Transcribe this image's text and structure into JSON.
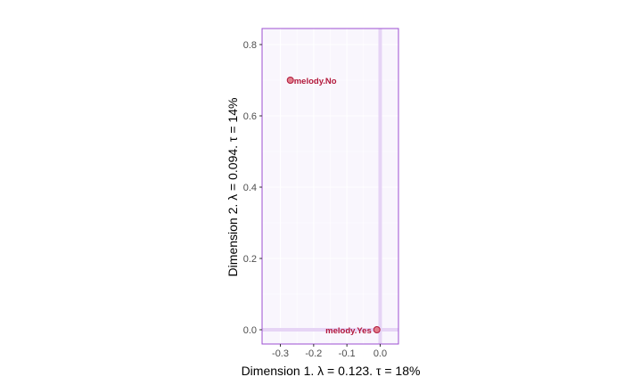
{
  "chart_data": {
    "type": "scatter",
    "xlabel": "Dimension 1.   λ = 0.123.  τ = 18%",
    "ylabel": "Dimension 2.   λ = 0.094.  τ = 14%",
    "xlim": [
      -0.355,
      0.055
    ],
    "ylim": [
      -0.04,
      0.845
    ],
    "x_ticks": [
      -0.3,
      -0.2,
      -0.1,
      0.0
    ],
    "x_tick_labels": [
      "-0.3",
      "-0.2",
      "-0.1",
      "0.0"
    ],
    "y_ticks": [
      0.0,
      0.2,
      0.4,
      0.6,
      0.8
    ],
    "y_tick_labels": [
      "0.0",
      "0.2",
      "0.4",
      "0.6",
      "0.8"
    ],
    "reference_lines": {
      "x": 0,
      "y": 0
    },
    "grid": true,
    "points": [
      {
        "label": "melody.No",
        "x": -0.27,
        "y": 0.7
      },
      {
        "label": "melody.Yes",
        "x": -0.01,
        "y": 0.0
      }
    ],
    "colors": {
      "panel_background": "#f9f6fd",
      "panel_border": "#9c4fd1",
      "grid": "#ffffff",
      "reference_line": "#e6d4f5",
      "point_fill": "#e07f8c",
      "point_stroke": "#b2183b",
      "point_label": "#b2183b"
    }
  }
}
